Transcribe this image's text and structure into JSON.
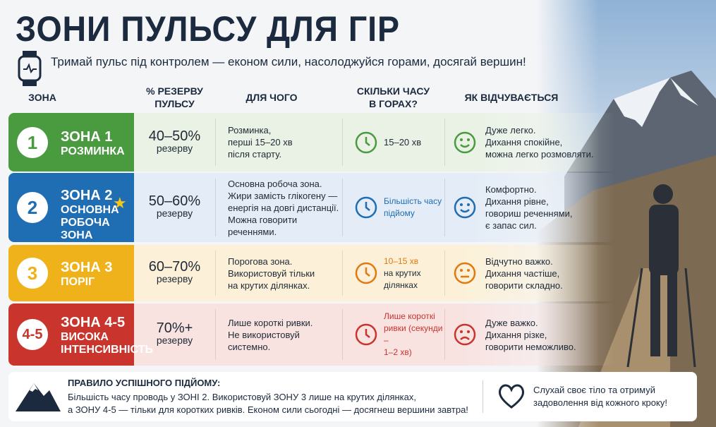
{
  "header": {
    "title": "ЗОНИ ПУЛЬСУ ДЛЯ ГІР",
    "subtitle": "Тримай пульс під контролем — економ сили, насолоджуйся горами, досягай вершин!"
  },
  "table": {
    "columns": [
      [
        "ЗОНА"
      ],
      [
        "% РЕЗЕРВУ",
        "ПУЛЬСУ"
      ],
      [
        "ДЛЯ ЧОГО"
      ],
      [
        "СКІЛЬКИ ЧАСУ",
        "В ГОРАХ?"
      ],
      [
        "ЯК ВІДЧУВАЄТЬСЯ"
      ]
    ],
    "rows": [
      {
        "number": "1",
        "zone": "ЗОНА 1",
        "zone_name": [
          "РОЗМИНКА"
        ],
        "reserve": "40–50%",
        "reserve_unit": "резерву",
        "purpose": [
          "Розминка,",
          "перші 15–20 хв",
          "після старту."
        ],
        "time": [
          "15–20 хв"
        ],
        "feeling": [
          "Дуже легко.",
          "Дихання спокійне,",
          "можна легко розмовляти."
        ]
      },
      {
        "number": "2",
        "zone": "ЗОНА 2",
        "zone_name": [
          "ОСНОВНА",
          "РОБОЧА ЗОНА"
        ],
        "reserve": "50–60%",
        "reserve_unit": "резерву",
        "purpose": [
          "Основна робоча зона.",
          "Жири замість глікогену —",
          "енергія на довгі дистанції.",
          "Можна говорити",
          "реченнями."
        ],
        "time": [
          "Більшість часу",
          "підйому"
        ],
        "feeling": [
          "Комфортно.",
          "Дихання рівне,",
          "говориш реченнями,",
          "є запас сил."
        ]
      },
      {
        "number": "3",
        "zone": "ЗОНА 3",
        "zone_name": [
          "ПОРІГ"
        ],
        "reserve": "60–70%",
        "reserve_unit": "резерву",
        "purpose": [
          "Порогова зона.",
          "Використовуй тільки",
          "на крутих ділянках."
        ],
        "time": [
          "10–15 хв",
          "на крутих",
          "ділянках"
        ],
        "feeling": [
          "Відчутно важко.",
          "Дихання частіше,",
          "говорити складно."
        ]
      },
      {
        "number": "4-5",
        "zone": "ЗОНА 4-5",
        "zone_name": [
          "ВИСОКА",
          "ІНТЕНСИВНІСТЬ"
        ],
        "reserve": "70%+",
        "reserve_unit": "резерву",
        "purpose": [
          "Лише короткі ривки.",
          "Не використовуй",
          "системно."
        ],
        "time": [
          "Лише короткі",
          "ривки (секунди –",
          "1–2 хв)"
        ],
        "feeling": [
          "Дуже важко.",
          "Дихання різке,",
          "говорити неможливо."
        ]
      }
    ]
  },
  "footer": {
    "rule_title": "ПРАВИЛО УСПІШНОГО ПІДЙОМУ:",
    "rule_text": [
      "Більшість часу проводь у ЗОНІ 2. Використовуй ЗОНУ 3 лише на крутих ділянках,",
      "а ЗОНУ 4-5 — тільки для коротких ривків. Економ сили сьогодні — досягнеш вершини завтра!"
    ],
    "motto": [
      "Слухай своє тіло та отримуй",
      "задоволення від кожного кроку!"
    ]
  }
}
